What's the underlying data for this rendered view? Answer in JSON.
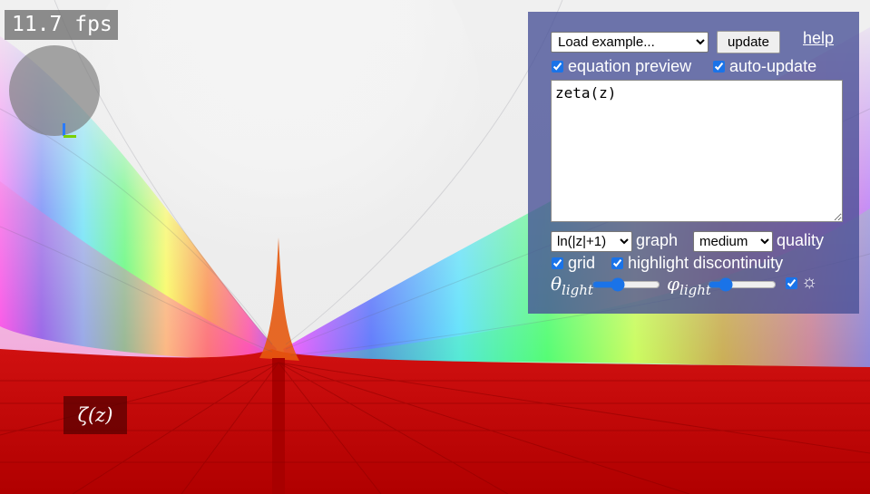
{
  "fps": {
    "text": "11.7 fps"
  },
  "formula_label": "ζ(z)",
  "panel": {
    "example_select": {
      "value": "Load example...",
      "options": [
        "Load example..."
      ]
    },
    "update_label": "update",
    "help_label": "help",
    "equation_preview": {
      "label": "equation preview",
      "checked": true
    },
    "auto_update": {
      "label": "auto-update",
      "checked": true
    },
    "equation": "zeta(z)",
    "scale_select": {
      "value": "ln(|z|+1)"
    },
    "graph_label": "graph",
    "quality_select": {
      "value": "medium"
    },
    "quality_label": "quality",
    "grid": {
      "label": "grid",
      "checked": true
    },
    "highlight": {
      "label": "highlight discontinuity",
      "checked": true
    },
    "theta_light": {
      "symbol": "θ",
      "sub": "light",
      "value": 0.35
    },
    "phi_light": {
      "symbol": "φ",
      "sub": "light",
      "value": 0.2
    },
    "light_toggle": {
      "checked": true,
      "icon": "sun-icon",
      "glyph": "☼"
    }
  },
  "colors": {
    "panel_bg": "#4650960",
    "accent": "#1a73e8",
    "surface_red": "#c00000"
  }
}
